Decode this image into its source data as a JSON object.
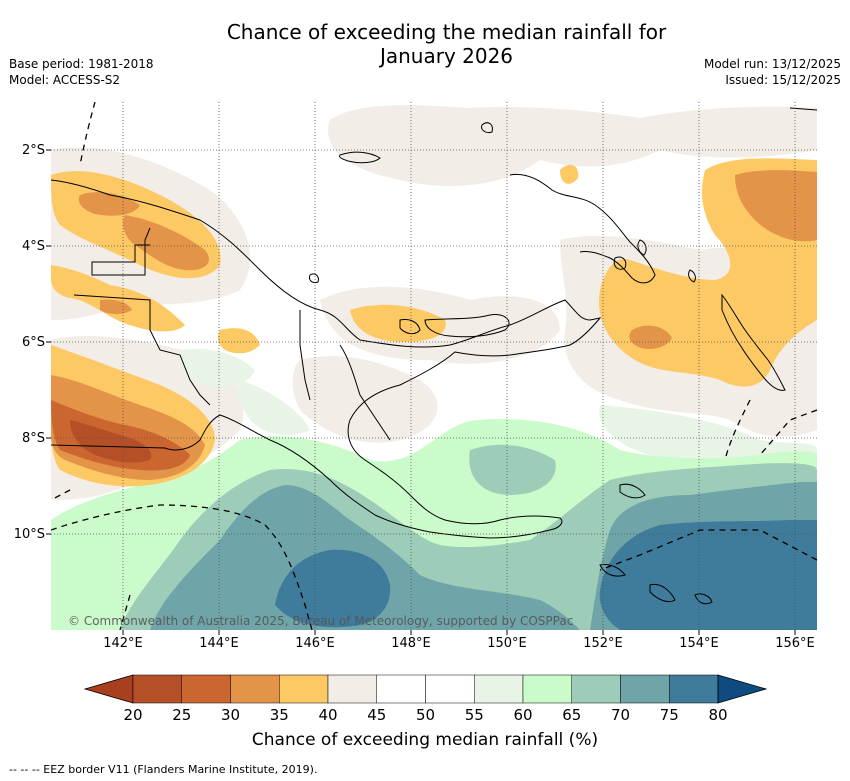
{
  "title_line1": "Chance of exceeding the median rainfall for",
  "title_line2": "January 2026",
  "meta": {
    "base_period": "Base period: 1981-2018",
    "model": "Model: ACCESS-S2",
    "model_run": "Model run: 13/12/2025",
    "issued": "Issued: 15/12/2025"
  },
  "y_ticks": [
    "2°S",
    "4°S",
    "6°S",
    "8°S",
    "10°S"
  ],
  "x_ticks": [
    "142°E",
    "144°E",
    "146°E",
    "148°E",
    "150°E",
    "152°E",
    "154°E",
    "156°E"
  ],
  "colorbar": {
    "labels": [
      "20",
      "25",
      "30",
      "35",
      "40",
      "45",
      "50",
      "55",
      "60",
      "65",
      "70",
      "75",
      "80"
    ],
    "colors": [
      "#a8401f",
      "#b54f27",
      "#cc6630",
      "#e39448",
      "#fdc964",
      "#f2ede6",
      "#ffffff",
      "#ffffff",
      "#e8f5e6",
      "#cbfbcb",
      "#9dcdb8",
      "#6fa5a8",
      "#3f7b9a",
      "#0e4b80"
    ],
    "title": "Chance of exceeding median rainfall (%)"
  },
  "copyright": "© Commonwealth of Australia 2025, Bureau of Meteorology, supported by COSPPac",
  "footer": "--  --  -- EEZ border V11 (Flanders Marine Institute, 2019)."
}
